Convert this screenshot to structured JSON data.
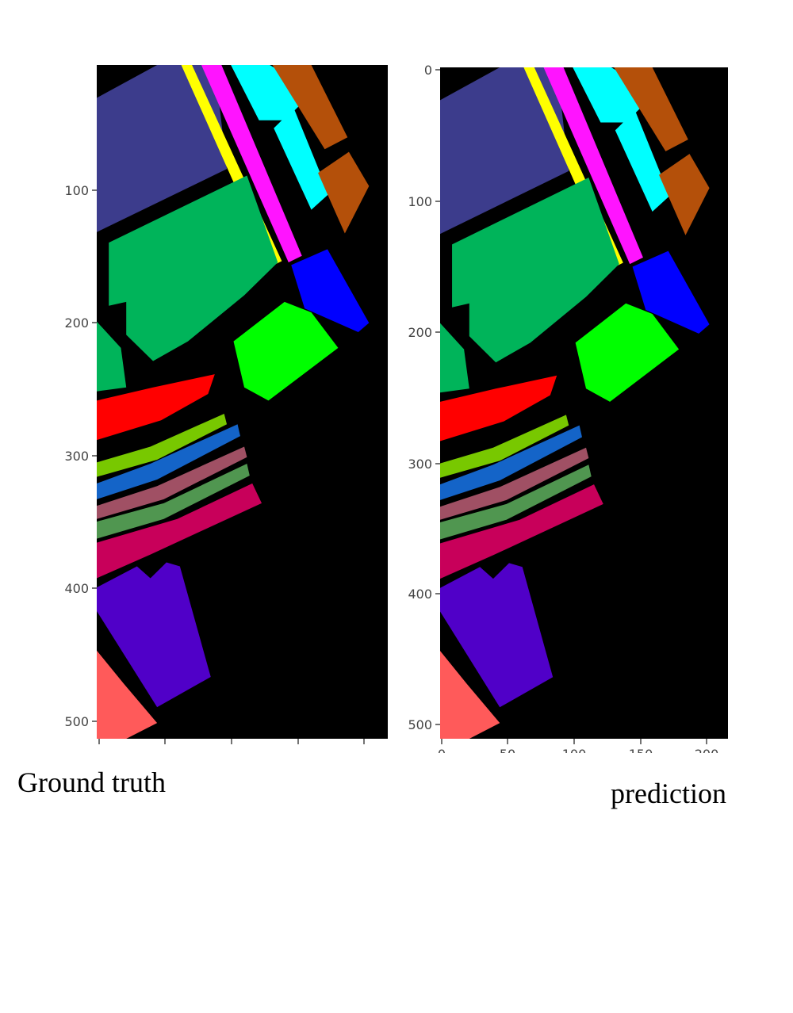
{
  "chart_data": [
    {
      "type": "heatmap",
      "caption": "Ground truth",
      "ylim": [
        512,
        0
      ],
      "xlim": [
        0,
        217
      ],
      "yticks": [
        "100",
        "200",
        "300",
        "400",
        "500"
      ],
      "xticks": []
    },
    {
      "type": "heatmap",
      "caption": "prediction",
      "ylim": [
        512,
        0
      ],
      "xlim": [
        0,
        217
      ],
      "yticks": [
        "0",
        "100",
        "200",
        "300",
        "400",
        "500"
      ],
      "xticks": [
        "0",
        "50",
        "100",
        "150",
        "200"
      ]
    }
  ],
  "colors": {
    "background": "#000000",
    "slate_blue": "#3c3c8c",
    "emerald": "#00b45a",
    "yellow": "#ffff00",
    "magenta": "#ff14ff",
    "cyan": "#00ffff",
    "brown": "#b4500a",
    "blue": "#0000ff",
    "lime": "#00ff00",
    "red": "#ff0000",
    "olive_green": "#78c800",
    "medium_blue": "#1464c8",
    "dusty_rose": "#a05064",
    "sage_green": "#509650",
    "crimson": "#c8005a",
    "violet": "#5000c8",
    "salmon": "#ff5a5a"
  }
}
